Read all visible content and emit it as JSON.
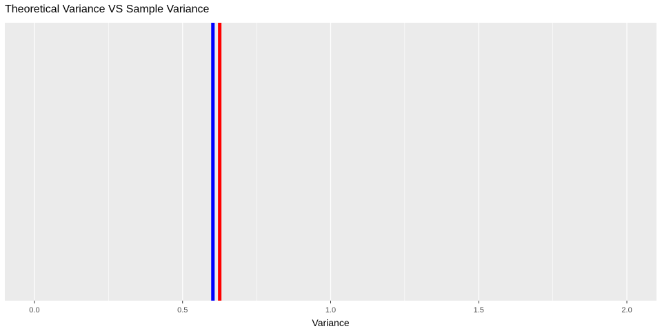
{
  "chart_data": {
    "type": "line",
    "title": "Theoretical Variance VS Sample Variance",
    "xlabel": "Variance",
    "ylabel": "",
    "xlim": [
      -0.1,
      2.1
    ],
    "x_ticks": [
      0.0,
      0.5,
      1.0,
      1.5,
      2.0
    ],
    "x_tick_labels": [
      "0.0",
      "0.5",
      "1.0",
      "1.5",
      "2.0"
    ],
    "x_minor_ticks": [
      0.25,
      0.75,
      1.25,
      1.75
    ],
    "y_axis_visible": false,
    "grid": true,
    "series": [
      {
        "x": 0.6025,
        "color": "#0000ff"
      },
      {
        "x": 0.6255,
        "color": "#ff0000"
      }
    ]
  },
  "colors": {
    "panel_background": "#ebebeb",
    "grid": "#ffffff",
    "tick_text": "#4d4d4d"
  }
}
